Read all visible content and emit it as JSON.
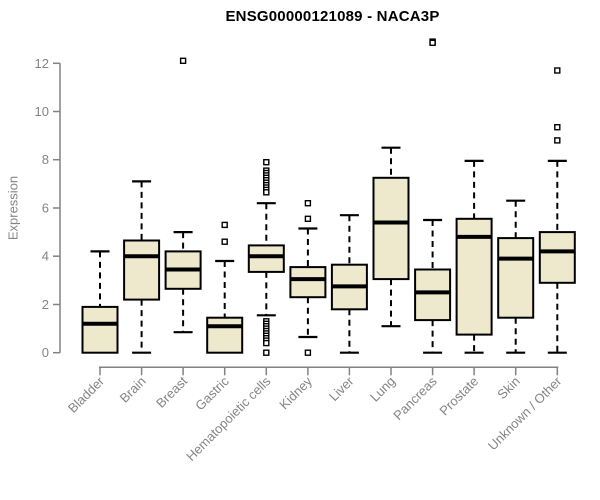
{
  "chart_data": {
    "type": "boxplot",
    "title": "ENSG00000121089 - NACA3P",
    "ylabel": "Expression",
    "xlabel": "",
    "ylim": [
      0,
      12
    ],
    "yticks": [
      0,
      2,
      4,
      6,
      8,
      10,
      12
    ],
    "grid": false,
    "legend": false,
    "categories": [
      "Bladder",
      "Brain",
      "Breast",
      "Gastric",
      "Hematopoietic cells",
      "Kidney",
      "Liver",
      "Lung",
      "Pancreas",
      "Prostate",
      "Skin",
      "Unknown / Other"
    ],
    "boxes": [
      {
        "category": "Bladder",
        "whisker_low": 0.0,
        "q1": 0.0,
        "median": 1.2,
        "q3": 1.9,
        "whisker_high": 4.2,
        "outliers": []
      },
      {
        "category": "Brain",
        "whisker_low": 0.0,
        "q1": 2.2,
        "median": 4.0,
        "q3": 4.65,
        "whisker_high": 7.1,
        "outliers": []
      },
      {
        "category": "Breast",
        "whisker_low": 0.85,
        "q1": 2.65,
        "median": 3.45,
        "q3": 4.2,
        "whisker_high": 5.0,
        "outliers": [
          12.1
        ]
      },
      {
        "category": "Gastric",
        "whisker_low": 0.0,
        "q1": 0.0,
        "median": 1.1,
        "q3": 1.45,
        "whisker_high": 3.8,
        "outliers": [
          5.3,
          4.6
        ]
      },
      {
        "category": "Hematopoietic cells",
        "whisker_low": 1.55,
        "q1": 3.35,
        "median": 4.0,
        "q3": 4.45,
        "whisker_high": 6.2,
        "outliers": [
          7.9,
          7.55,
          7.45,
          7.35,
          7.25,
          7.15,
          7.05,
          6.95,
          6.85,
          6.75,
          6.65,
          1.3,
          1.2,
          1.1,
          1.0,
          0.9,
          0.8,
          0.7,
          0.6,
          0.5,
          0.4,
          0.0
        ]
      },
      {
        "category": "Kidney",
        "whisker_low": 0.65,
        "q1": 2.3,
        "median": 3.05,
        "q3": 3.55,
        "whisker_high": 5.15,
        "outliers": [
          6.2,
          5.55,
          0.0
        ]
      },
      {
        "category": "Liver",
        "whisker_low": 0.0,
        "q1": 1.8,
        "median": 2.75,
        "q3": 3.65,
        "whisker_high": 5.7,
        "outliers": []
      },
      {
        "category": "Lung",
        "whisker_low": 1.1,
        "q1": 3.05,
        "median": 5.4,
        "q3": 7.25,
        "whisker_high": 8.5,
        "outliers": []
      },
      {
        "category": "Pancreas",
        "whisker_low": 0.0,
        "q1": 1.35,
        "median": 2.5,
        "q3": 3.45,
        "whisker_high": 5.5,
        "outliers": [
          12.9,
          12.85
        ]
      },
      {
        "category": "Prostate",
        "whisker_low": 0.0,
        "q1": 0.75,
        "median": 4.8,
        "q3": 5.55,
        "whisker_high": 7.95,
        "outliers": []
      },
      {
        "category": "Skin",
        "whisker_low": 0.0,
        "q1": 1.45,
        "median": 3.9,
        "q3": 4.75,
        "whisker_high": 6.3,
        "outliers": []
      },
      {
        "category": "Unknown / Other",
        "whisker_low": 0.0,
        "q1": 2.9,
        "median": 4.2,
        "q3": 5.0,
        "whisker_high": 7.95,
        "outliers": [
          11.7,
          9.35,
          8.8
        ]
      }
    ],
    "colors": {
      "box_fill": "#EEE8CD",
      "box_stroke": "#000000",
      "median": "#000000",
      "whisker": "#000000",
      "outlier_stroke": "#000000",
      "outlier_fill": "#ffffff",
      "axis": "#828282",
      "tick_label": "#848484",
      "title": "#000000",
      "background": "#ffffff"
    }
  }
}
